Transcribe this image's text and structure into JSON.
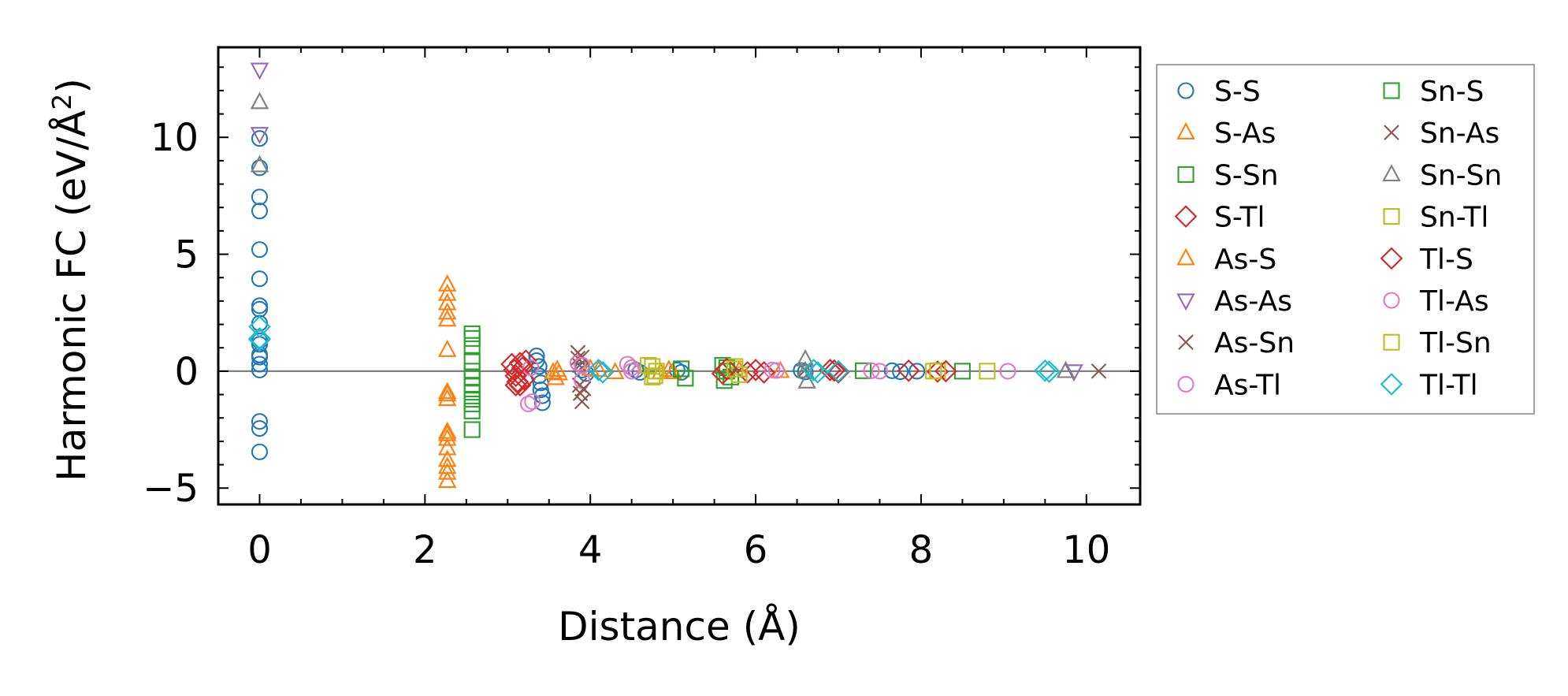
{
  "chart_data": {
    "type": "scatter",
    "xlabel": "Distance (Å)",
    "ylabel": "Harmonic FC (eV/Å²)",
    "ylabel_main": "Harmonic FC (eV/Å",
    "ylabel_sup": "2",
    "ylabel_close": ")",
    "xlim": [
      -0.5,
      10.65
    ],
    "ylim": [
      -5.7,
      13.85
    ],
    "xticks": [
      0,
      2,
      4,
      6,
      8,
      10
    ],
    "yticks": [
      -5,
      0,
      5,
      10
    ],
    "xtick_labels": [
      "0",
      "2",
      "4",
      "6",
      "8",
      "10"
    ],
    "ytick_labels": [
      "−5",
      "0",
      "5",
      "10"
    ],
    "zero_line": 0,
    "legend_position": "outside-right",
    "series": [
      {
        "name": "S-S",
        "marker": "circle",
        "color": "#1f77b4",
        "x": [
          0,
          0,
          0,
          0,
          0,
          0,
          0,
          0,
          0,
          0,
          0,
          0,
          0,
          0,
          0,
          0,
          0,
          0,
          3.35,
          3.35,
          3.38,
          3.38,
          3.4,
          3.4,
          3.42,
          3.42,
          3.9,
          3.95,
          4.55,
          4.6,
          5.05,
          5.1,
          6.55,
          6.6,
          7.65,
          7.75,
          7.95
        ],
        "y": [
          9.95,
          8.7,
          7.45,
          6.85,
          5.2,
          3.95,
          2.8,
          2.65,
          2.05,
          1.3,
          1.15,
          0.7,
          0.05,
          -2.15,
          -2.45,
          -3.45,
          0.6,
          0.3,
          0.65,
          0.45,
          0.2,
          -0.2,
          -0.5,
          -0.8,
          -1.05,
          -1.35,
          0.05,
          -0.1,
          0.05,
          -0.05,
          0.05,
          -0.05,
          0.03,
          -0.03,
          0.02,
          -0.02,
          0.0
        ]
      },
      {
        "name": "S-As",
        "marker": "triangle-up",
        "color": "#ff7f0e",
        "x": [
          2.27,
          2.27,
          2.27,
          2.27,
          2.27,
          2.27,
          2.27,
          2.27,
          2.27,
          2.27,
          2.27,
          2.27,
          2.27,
          3.6,
          3.62,
          4.0,
          4.3,
          4.95,
          5.0,
          5.8,
          6.3
        ],
        "y": [
          3.7,
          3.3,
          2.9,
          2.5,
          2.2,
          0.9,
          -1.0,
          -1.2,
          -2.6,
          -2.9,
          -3.3,
          -3.8,
          -4.35,
          0.05,
          -0.1,
          0.1,
          -0.05,
          0.05,
          -0.05,
          0.03,
          0.0
        ]
      },
      {
        "name": "S-Sn",
        "marker": "square",
        "color": "#2ca02c",
        "x": [
          2.57,
          2.57,
          2.57,
          2.57,
          2.57,
          2.57,
          2.57,
          2.57,
          2.57,
          2.57,
          2.57,
          2.57,
          5.1,
          5.15,
          5.65,
          5.7,
          7.3,
          8.5
        ],
        "y": [
          1.6,
          1.4,
          1.1,
          0.4,
          0.0,
          -0.3,
          -0.6,
          -0.9,
          -1.2,
          -1.4,
          -1.7,
          -2.5,
          0.1,
          -0.3,
          0.15,
          -0.25,
          0.02,
          0.0
        ]
      },
      {
        "name": "S-Tl",
        "marker": "diamond",
        "color": "#d62728",
        "x": [
          3.05,
          3.08,
          3.1,
          3.12,
          3.15,
          3.18,
          3.2,
          3.22,
          5.65,
          5.9,
          6.0,
          6.1,
          6.9,
          7.0,
          7.85,
          8.2
        ],
        "y": [
          0.3,
          0.05,
          -0.2,
          -0.45,
          -0.6,
          0.15,
          -0.35,
          0.45,
          0.1,
          -0.05,
          0.05,
          -0.05,
          0.05,
          -0.05,
          0.02,
          -0.02
        ]
      },
      {
        "name": "As-S",
        "marker": "triangle-up",
        "color": "#ff7f0e",
        "x": [
          2.27,
          2.27,
          2.27,
          2.27,
          3.55,
          3.58,
          4.1,
          4.85
        ],
        "y": [
          -0.9,
          -2.7,
          -4.1,
          -4.7,
          -0.05,
          -0.3,
          0.05,
          -0.05
        ]
      },
      {
        "name": "As-As",
        "marker": "triangle-down",
        "color": "#9467bd",
        "x": [
          0,
          0,
          9.85
        ],
        "y": [
          12.9,
          10.15,
          0.0
        ]
      },
      {
        "name": "As-Sn",
        "marker": "x",
        "color": "#8c564b",
        "x": [
          3.85,
          3.85,
          3.87,
          3.87,
          3.88,
          3.9,
          10.15
        ],
        "y": [
          0.8,
          0.55,
          0.25,
          -0.6,
          -0.95,
          -1.3,
          0.0
        ]
      },
      {
        "name": "As-Tl",
        "marker": "circle",
        "color": "#e377c2",
        "x": [
          3.25,
          3.28,
          3.85,
          3.9,
          4.45,
          4.5,
          6.2,
          7.4,
          9.05
        ],
        "y": [
          -1.4,
          0.15,
          0.35,
          -0.4,
          0.3,
          0.0,
          0.05,
          0.02,
          0.0
        ]
      },
      {
        "name": "Sn-S",
        "marker": "square",
        "color": "#2ca02c",
        "x": [
          5.6,
          5.62,
          5.65
        ],
        "y": [
          0.25,
          -0.4,
          0.0
        ]
      },
      {
        "name": "Sn-As",
        "marker": "x",
        "color": "#8c564b",
        "x": [
          3.9,
          3.92,
          6.6
        ],
        "y": [
          0.6,
          -0.75,
          0.05
        ]
      },
      {
        "name": "Sn-Sn",
        "marker": "triangle-up",
        "color": "#7f7f7f",
        "x": [
          0,
          0,
          6.6,
          6.6,
          6.62,
          9.75
        ],
        "y": [
          11.5,
          8.8,
          0.5,
          0.0,
          -0.45,
          0.0
        ]
      },
      {
        "name": "Sn-Tl",
        "marker": "square",
        "color": "#bcbd22",
        "x": [
          4.75,
          4.78,
          4.8,
          5.75,
          5.8,
          8.2,
          8.8
        ],
        "y": [
          0.2,
          -0.2,
          0.0,
          0.2,
          -0.15,
          0.02,
          0.0
        ]
      },
      {
        "name": "Tl-S",
        "marker": "diamond",
        "color": "#d62728",
        "x": [
          3.1,
          3.15,
          5.6,
          5.65,
          6.95,
          8.3
        ],
        "y": [
          -0.6,
          0.35,
          -0.1,
          0.1,
          0.03,
          0.0
        ]
      },
      {
        "name": "Tl-As",
        "marker": "circle",
        "color": "#e377c2",
        "x": [
          3.3,
          3.9,
          4.5,
          6.25,
          7.5
        ],
        "y": [
          -1.3,
          0.25,
          0.15,
          0.03,
          0.0
        ]
      },
      {
        "name": "Tl-Sn",
        "marker": "square",
        "color": "#bcbd22",
        "x": [
          4.7,
          4.75,
          5.75,
          8.15
        ],
        "y": [
          0.25,
          -0.25,
          0.1,
          0.0
        ]
      },
      {
        "name": "Tl-Tl",
        "marker": "diamond",
        "color": "#17becf",
        "x": [
          0,
          0,
          0,
          4.1,
          4.15,
          6.7,
          6.75,
          7.0,
          9.5,
          9.55
        ],
        "y": [
          1.9,
          1.35,
          1.4,
          0.05,
          -0.05,
          0.05,
          -0.05,
          0.0,
          0.02,
          -0.02
        ]
      }
    ]
  }
}
